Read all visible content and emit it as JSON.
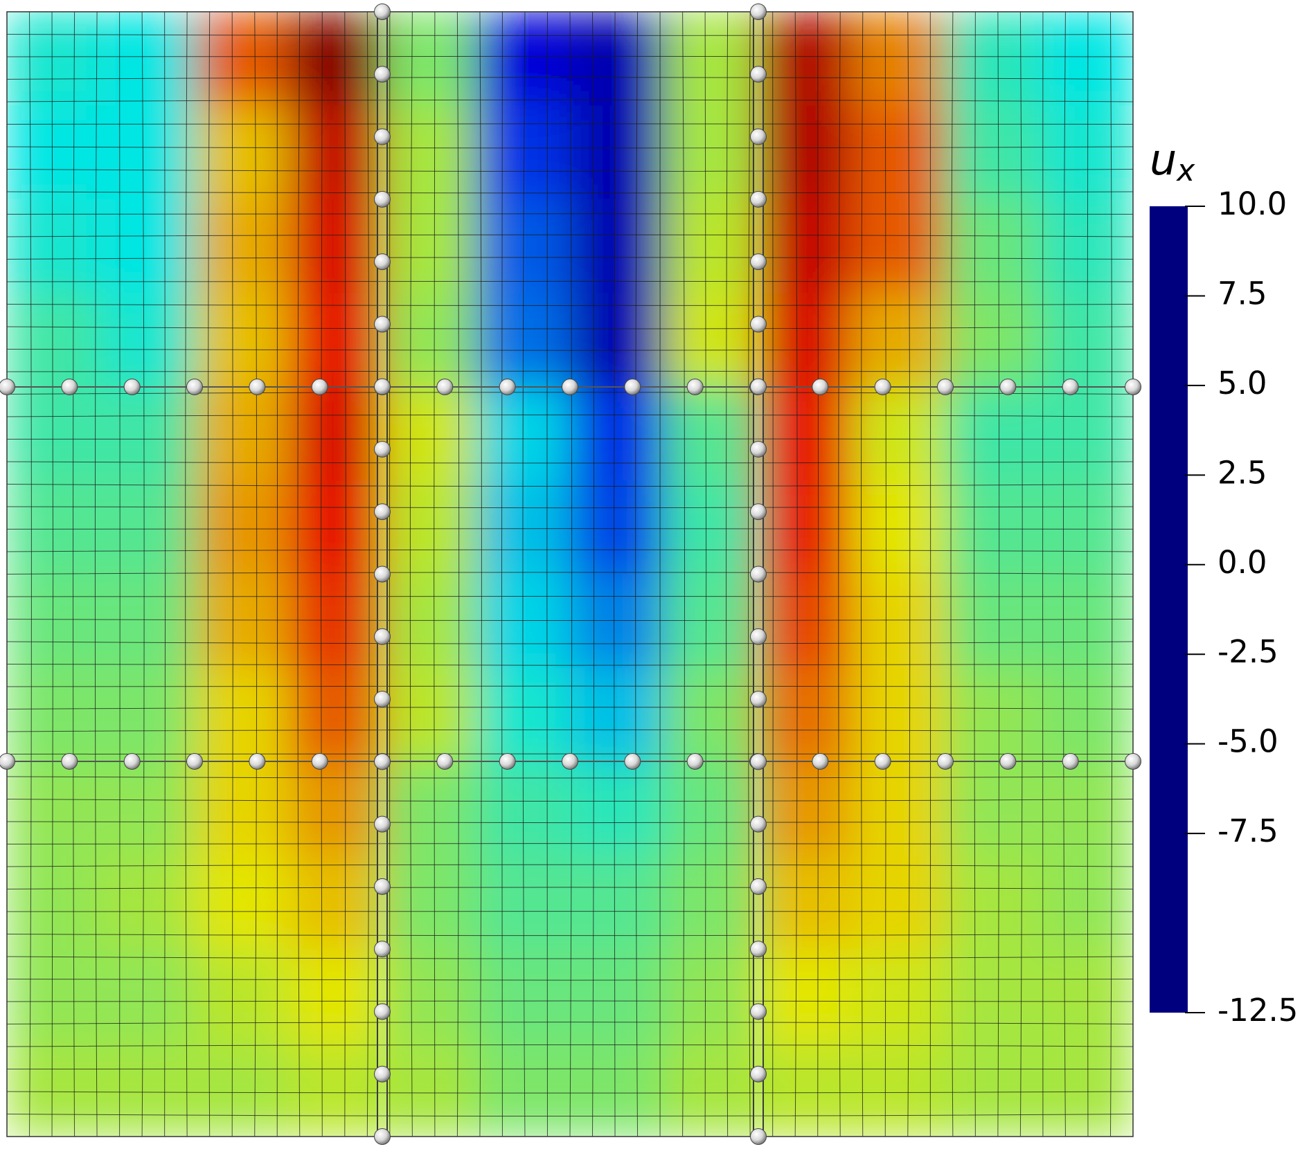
{
  "chart_data": {
    "type": "heatmap",
    "colorbar_title": {
      "base": "u",
      "subscript": "x"
    },
    "clim": [
      -12.5,
      10
    ],
    "cticks": [
      {
        "value": 10,
        "label": "10.0"
      },
      7.5,
      {
        "value": 5,
        "label": "5.0"
      },
      2.5,
      {
        "value": 0,
        "label": "0.0"
      },
      -2.5,
      {
        "value": -5,
        "label": "-5.0"
      },
      -7.5,
      -12.5
    ],
    "colormap": [
      "#00007f",
      "#0000ff",
      "#0080ff",
      "#00ffff",
      "#80ff80",
      "#ffff00",
      "#ff8000",
      "#ff0000",
      "#7f0000"
    ],
    "z": [
      [
        -3.5,
        -4,
        5,
        9.5,
        -1,
        -10,
        -11,
        0,
        8.5,
        4,
        -3,
        -4
      ],
      [
        -4,
        -4,
        2.5,
        8,
        0,
        -8.5,
        -11,
        0,
        8.5,
        5,
        -2.5,
        -3.5
      ],
      [
        -3.5,
        -4,
        3,
        7.5,
        0,
        -7.5,
        -11,
        0.5,
        8,
        5,
        -1.5,
        -3
      ],
      [
        -2.5,
        -3.5,
        2.5,
        7,
        -0.5,
        -7,
        -11,
        1,
        7.5,
        3,
        -1,
        -2.5
      ],
      [
        -2.5,
        -2.5,
        3,
        7.5,
        1,
        -4.5,
        -8.5,
        -2,
        7,
        1,
        -2.5,
        -2.5
      ],
      [
        -2,
        -2,
        3.5,
        7,
        0.5,
        -5,
        -8,
        -2.5,
        6.5,
        1.5,
        -2,
        -2
      ],
      [
        -1.5,
        -1.5,
        3,
        6,
        0,
        -4.5,
        -6.5,
        -2,
        5.5,
        2,
        -1.5,
        -1.5
      ],
      [
        -1,
        -1,
        2,
        5,
        0.5,
        -3.5,
        -5,
        -1,
        4.5,
        2,
        -0.5,
        -1
      ],
      [
        -0.5,
        -0.5,
        2,
        3.5,
        -1,
        -2.5,
        -3,
        -1.5,
        3.5,
        2,
        -0.5,
        -0.5
      ],
      [
        -0.5,
        0,
        1.5,
        2.5,
        -1,
        -2,
        -2,
        -1,
        2.5,
        2,
        0,
        -0.5
      ],
      [
        -0.5,
        -0.5,
        0.5,
        1.5,
        -0.5,
        -1.5,
        -1.5,
        -0.5,
        1.5,
        1,
        0,
        0
      ],
      [
        0,
        0,
        0,
        0.5,
        0,
        -1,
        -1,
        0,
        0.5,
        0.5,
        0,
        0
      ]
    ]
  }
}
